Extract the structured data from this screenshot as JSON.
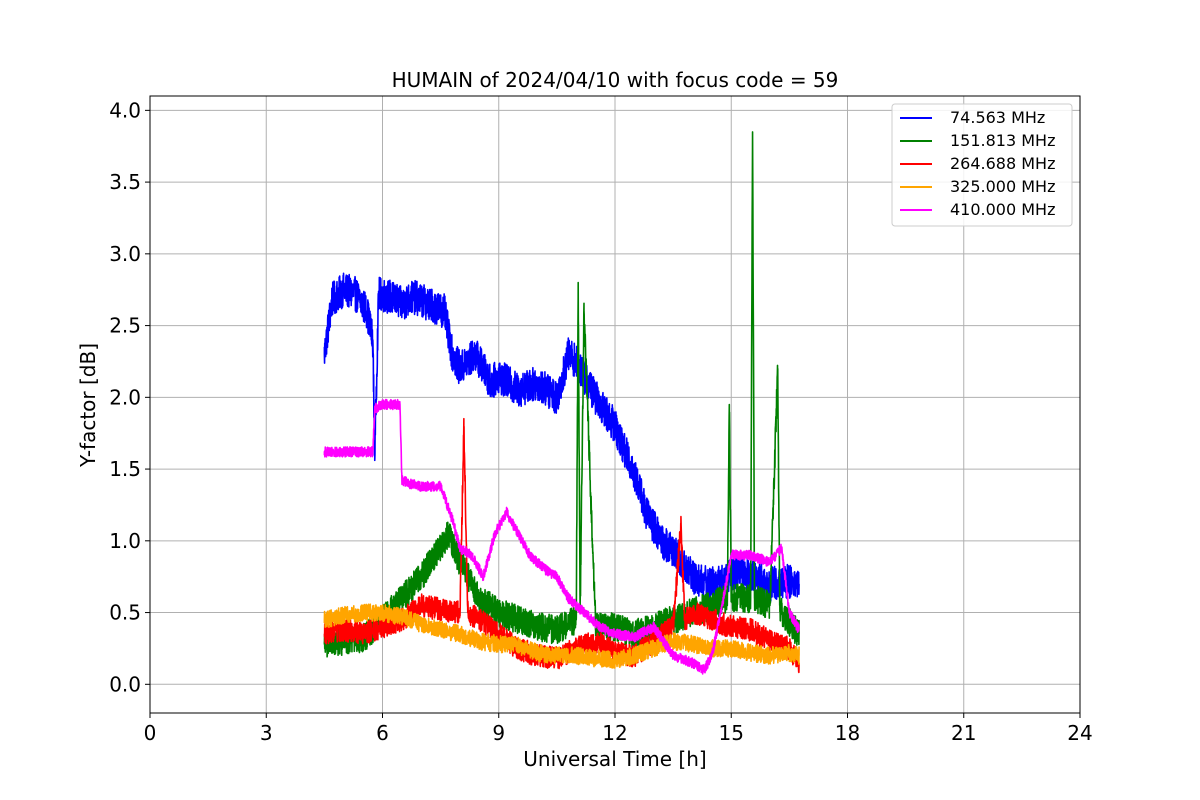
{
  "chart_data": {
    "type": "line",
    "title": "HUMAIN of 2024/04/10 with focus code = 59",
    "xlabel": "Universal Time [h]",
    "ylabel": "Y-factor [dB]",
    "xlim": [
      0,
      24
    ],
    "ylim": [
      -0.2,
      4.1
    ],
    "xticks": [
      0,
      3,
      6,
      9,
      12,
      15,
      18,
      21,
      24
    ],
    "yticks": [
      0.0,
      0.5,
      1.0,
      1.5,
      2.0,
      2.5,
      3.0,
      3.5,
      4.0
    ],
    "xtick_labels": [
      "0",
      "3",
      "6",
      "9",
      "12",
      "15",
      "18",
      "21",
      "24"
    ],
    "ytick_labels": [
      "0.0",
      "0.5",
      "1.0",
      "1.5",
      "2.0",
      "2.5",
      "3.0",
      "3.5",
      "4.0"
    ],
    "grid": true,
    "legend_position": "top-right",
    "series": [
      {
        "name": "74.563 MHz",
        "color": "#0000ff",
        "noise": 0.12,
        "x": [
          4.5,
          4.7,
          5.0,
          5.3,
          5.6,
          5.75,
          5.8,
          5.9,
          6.2,
          6.5,
          6.8,
          7.2,
          7.6,
          7.8,
          8.0,
          8.4,
          8.8,
          9.0,
          9.5,
          10.0,
          10.5,
          10.8,
          11.0,
          11.5,
          12.0,
          12.3,
          12.6,
          12.8,
          13.2,
          13.6,
          14.0,
          14.4,
          14.8,
          15.2,
          15.6,
          16.0,
          16.4,
          16.75
        ],
        "y": [
          2.3,
          2.68,
          2.75,
          2.72,
          2.6,
          2.4,
          1.6,
          2.72,
          2.7,
          2.65,
          2.7,
          2.65,
          2.6,
          2.3,
          2.2,
          2.3,
          2.1,
          2.15,
          2.05,
          2.1,
          2.0,
          2.3,
          2.25,
          2.0,
          1.8,
          1.6,
          1.4,
          1.2,
          1.0,
          0.9,
          0.75,
          0.7,
          0.72,
          0.8,
          0.75,
          0.7,
          0.72,
          0.7
        ]
      },
      {
        "name": "151.813 MHz",
        "color": "#008000",
        "noise": 0.1,
        "x": [
          4.5,
          5.0,
          5.5,
          6.0,
          6.5,
          7.0,
          7.5,
          7.7,
          8.0,
          8.5,
          9.0,
          9.5,
          10.0,
          10.5,
          11.0,
          11.05,
          11.1,
          11.2,
          11.5,
          12.0,
          12.5,
          13.0,
          13.5,
          14.0,
          14.5,
          14.9,
          14.95,
          15.0,
          15.5,
          15.55,
          15.6,
          16.0,
          16.2,
          16.25,
          16.3,
          16.75
        ],
        "y": [
          0.28,
          0.3,
          0.32,
          0.45,
          0.6,
          0.75,
          0.95,
          1.05,
          0.85,
          0.6,
          0.5,
          0.45,
          0.4,
          0.38,
          0.45,
          2.8,
          0.5,
          2.6,
          0.4,
          0.4,
          0.35,
          0.4,
          0.45,
          0.5,
          0.55,
          0.6,
          1.95,
          0.6,
          0.6,
          3.85,
          0.6,
          0.55,
          2.2,
          0.55,
          0.5,
          0.35
        ]
      },
      {
        "name": "264.688 MHz",
        "color": "#ff0000",
        "noise": 0.08,
        "x": [
          4.5,
          5.0,
          5.5,
          6.0,
          6.5,
          7.0,
          7.5,
          8.0,
          8.1,
          8.2,
          8.5,
          9.0,
          9.5,
          10.0,
          10.5,
          11.0,
          11.5,
          12.0,
          12.5,
          13.0,
          13.5,
          13.7,
          13.8,
          14.0,
          14.5,
          15.0,
          15.5,
          16.0,
          16.5,
          16.75
        ],
        "y": [
          0.35,
          0.38,
          0.35,
          0.4,
          0.45,
          0.55,
          0.52,
          0.5,
          1.8,
          0.5,
          0.45,
          0.35,
          0.25,
          0.2,
          0.18,
          0.25,
          0.3,
          0.22,
          0.2,
          0.3,
          0.4,
          1.1,
          0.45,
          0.5,
          0.45,
          0.4,
          0.38,
          0.3,
          0.25,
          0.15
        ]
      },
      {
        "name": "325.000 MHz",
        "color": "#ffa500",
        "noise": 0.06,
        "x": [
          4.5,
          5.0,
          5.5,
          6.0,
          6.5,
          7.0,
          7.5,
          8.0,
          8.5,
          9.0,
          9.5,
          10.0,
          10.5,
          11.0,
          11.5,
          12.0,
          12.5,
          13.0,
          13.5,
          14.0,
          14.5,
          15.0,
          15.5,
          16.0,
          16.5,
          16.75
        ],
        "y": [
          0.45,
          0.48,
          0.5,
          0.5,
          0.47,
          0.42,
          0.38,
          0.35,
          0.3,
          0.28,
          0.27,
          0.22,
          0.2,
          0.2,
          0.18,
          0.17,
          0.2,
          0.25,
          0.3,
          0.28,
          0.25,
          0.25,
          0.22,
          0.2,
          0.22,
          0.2
        ]
      },
      {
        "name": "410.000 MHz",
        "color": "#ff00ff",
        "noise": 0.035,
        "x": [
          4.5,
          5.0,
          5.5,
          5.75,
          5.8,
          6.0,
          6.45,
          6.5,
          6.7,
          7.0,
          7.5,
          7.8,
          8.0,
          8.3,
          8.6,
          8.9,
          9.2,
          9.5,
          9.8,
          10.2,
          10.5,
          10.8,
          11.2,
          11.6,
          12.0,
          12.5,
          13.0,
          13.5,
          14.0,
          14.3,
          14.5,
          14.8,
          15.0,
          15.5,
          16.0,
          16.3,
          16.5,
          16.75
        ],
        "y": [
          1.62,
          1.62,
          1.62,
          1.62,
          1.92,
          1.95,
          1.95,
          1.42,
          1.4,
          1.38,
          1.38,
          1.15,
          0.95,
          0.9,
          0.75,
          1.05,
          1.2,
          1.05,
          0.9,
          0.8,
          0.75,
          0.6,
          0.5,
          0.4,
          0.35,
          0.33,
          0.4,
          0.2,
          0.15,
          0.1,
          0.2,
          0.6,
          0.9,
          0.9,
          0.85,
          0.95,
          0.5,
          0.38
        ]
      }
    ]
  }
}
